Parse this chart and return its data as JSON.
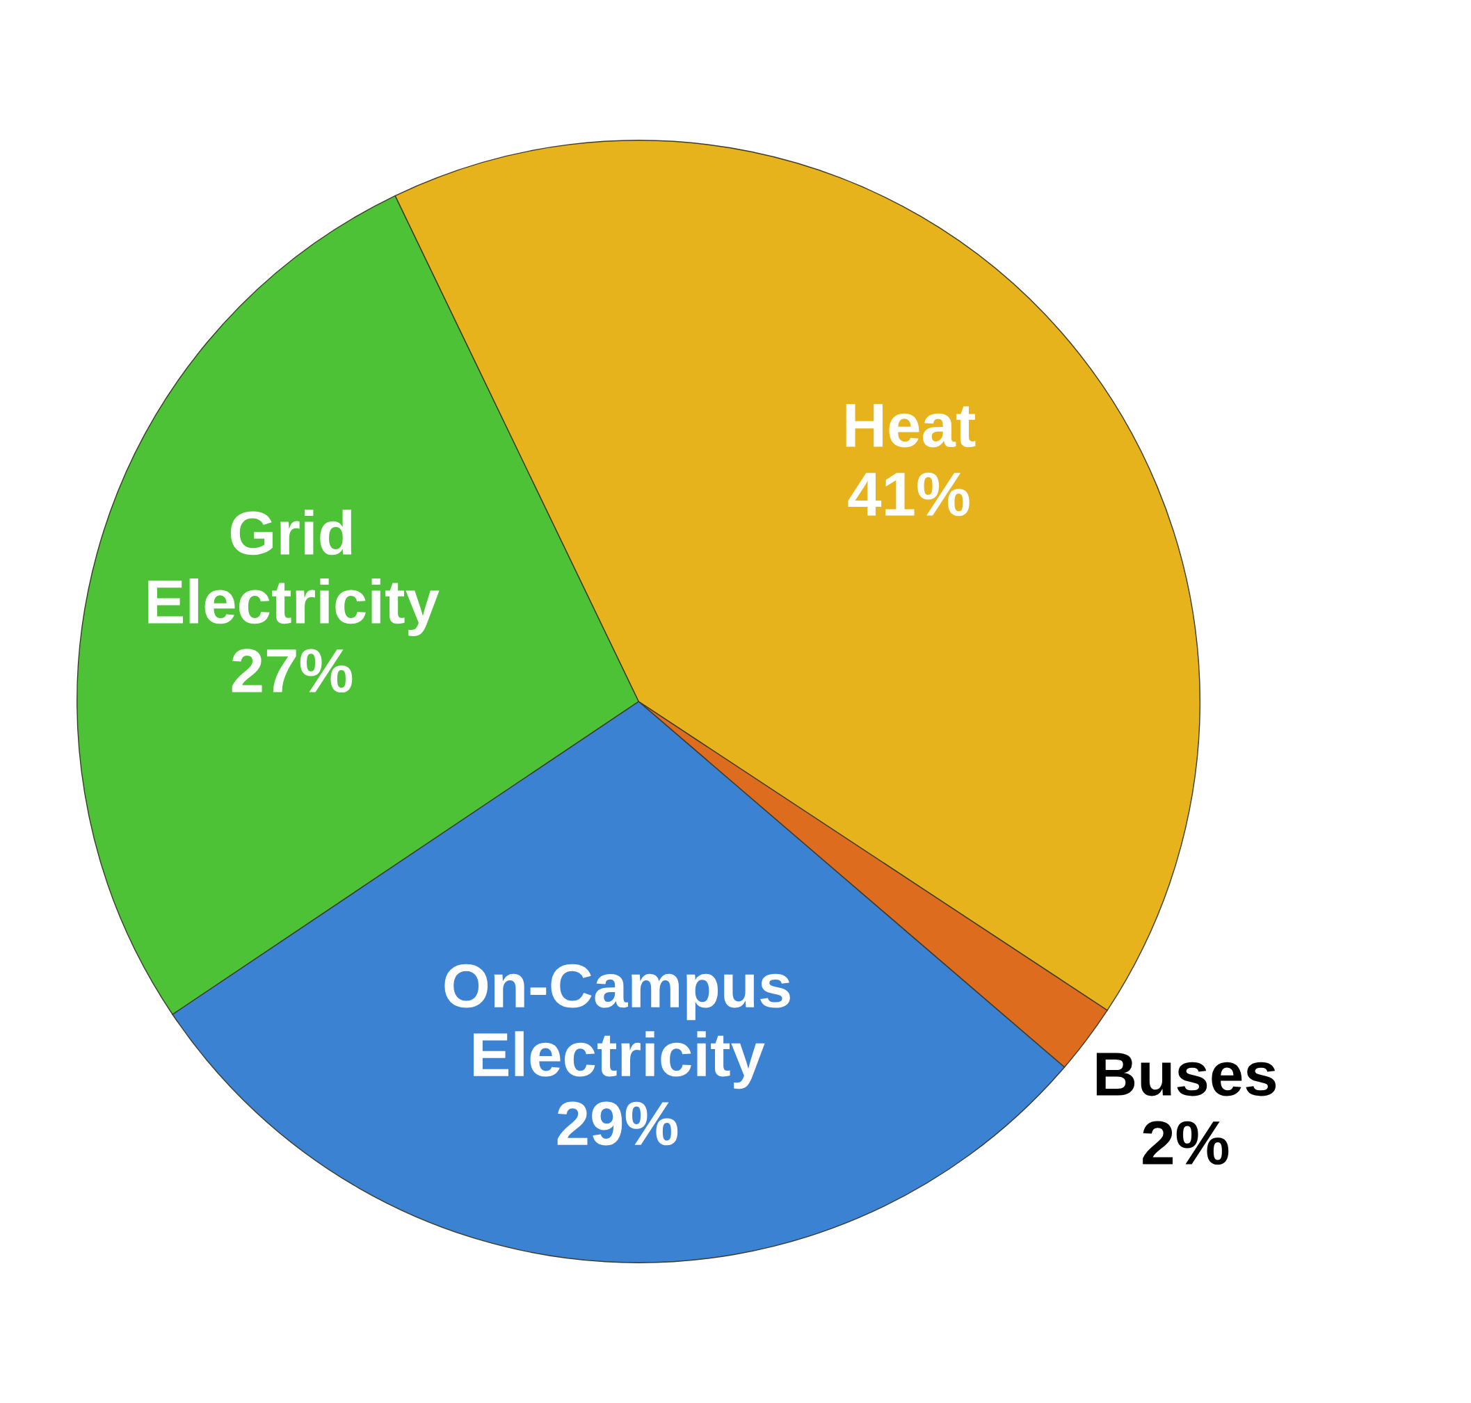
{
  "chart_data": {
    "type": "pie",
    "categories": [
      "Heat",
      "Buses",
      "On-Campus\nElectricity",
      "Grid\nElectricity"
    ],
    "values": [
      41,
      2,
      29,
      27
    ],
    "value_labels": [
      "41%",
      "2%",
      "29%",
      "27%"
    ],
    "colors": [
      "#e6b31c",
      "#dd6c1e",
      "#3b82d2",
      "#4dc236"
    ]
  }
}
